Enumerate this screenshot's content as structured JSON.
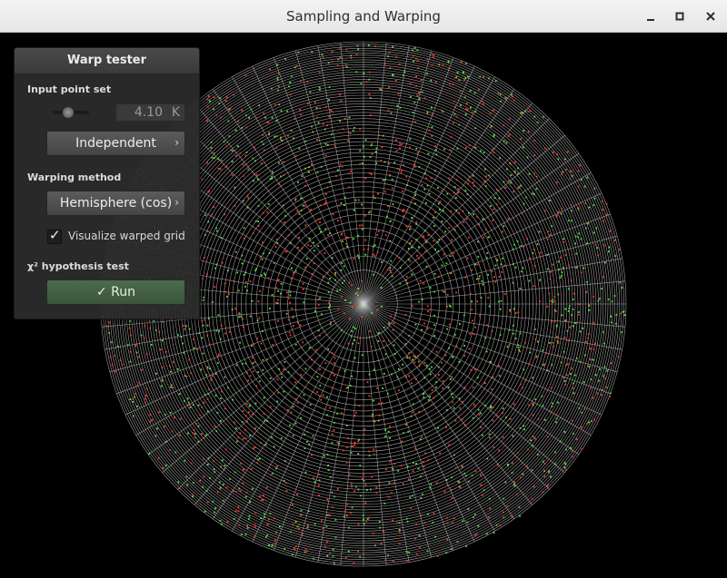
{
  "window": {
    "title": "Sampling and Warping",
    "controls": {
      "minimize_icon": "minimize-icon",
      "maximize_icon": "maximize-icon",
      "close_icon": "close-icon"
    }
  },
  "panel": {
    "title": "Warp tester",
    "input_point_set": {
      "label": "Input point set",
      "slider_level": 0.4,
      "count_value": "4.10",
      "count_unit": "K",
      "sampler_button": "Independent",
      "sampler_chevron": "›"
    },
    "warping": {
      "label": "Warping method",
      "method_button": "Hemisphere (cos)",
      "method_chevron": "›",
      "visualize_checked": true,
      "visualize_label": "Visualize warped grid"
    },
    "test": {
      "label": "χ² hypothesis test",
      "run_icon": "check-icon",
      "run_glyph": "✓",
      "run_label": "Run"
    }
  },
  "visualization": {
    "grid_color": "#cfcfcf",
    "point_colors": [
      "#ff3b30",
      "#58e04a"
    ]
  }
}
